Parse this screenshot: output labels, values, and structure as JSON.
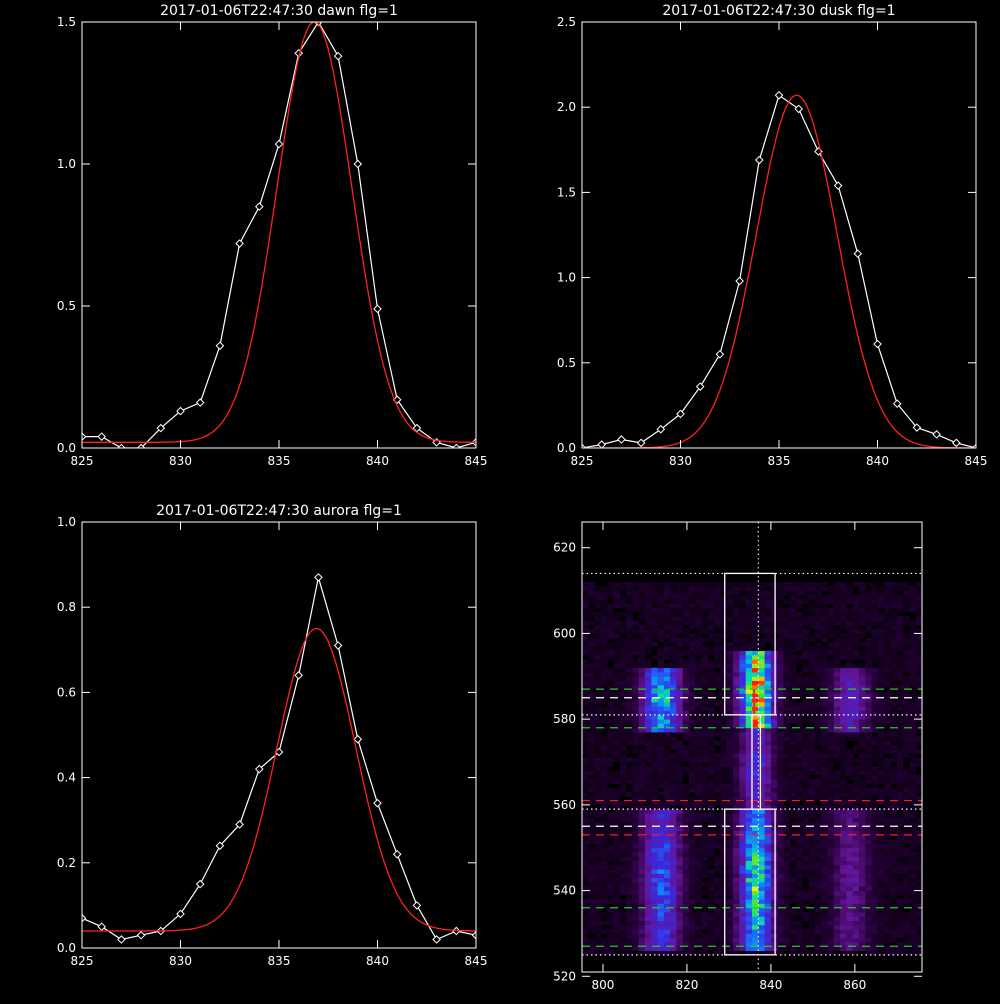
{
  "chart_data": [
    {
      "type": "line",
      "title": "2017-01-06T22:47:30 dawn flg=1",
      "xlim": [
        825,
        845
      ],
      "ylim": [
        0,
        1.5
      ],
      "xticks": [
        "825",
        "830",
        "835",
        "840",
        "845"
      ],
      "yticks": [
        "0.0",
        "0.5",
        "1.0",
        "1.5"
      ],
      "series": [
        {
          "color": "#ffffff",
          "marker": "diamond",
          "x": [
            825,
            826,
            827,
            828,
            829,
            830,
            831,
            832,
            833,
            834,
            835,
            836,
            837,
            838,
            839,
            840,
            841,
            842,
            843,
            844,
            845
          ],
          "y": [
            0.04,
            0.04,
            0.0,
            0.0,
            0.07,
            0.13,
            0.16,
            0.36,
            0.72,
            0.85,
            1.07,
            1.39,
            1.5,
            1.38,
            1.0,
            0.49,
            0.17,
            0.07,
            0.02,
            0.0,
            0.02
          ]
        },
        {
          "color": "#ff2020",
          "gaussian": {
            "amp": 1.48,
            "center": 836.8,
            "sigma": 1.9,
            "offset": 0.02
          }
        }
      ]
    },
    {
      "type": "line",
      "title": "2017-01-06T22:47:30 dusk flg=1",
      "xlim": [
        825,
        845
      ],
      "ylim": [
        0,
        2.5
      ],
      "xticks": [
        "825",
        "830",
        "835",
        "840",
        "845"
      ],
      "yticks": [
        "0.0",
        "0.5",
        "1.0",
        "1.5",
        "2.0",
        "2.5"
      ],
      "series": [
        {
          "color": "#ffffff",
          "marker": "diamond",
          "x": [
            825,
            826,
            827,
            828,
            829,
            830,
            831,
            832,
            833,
            834,
            835,
            836,
            837,
            838,
            839,
            840,
            841,
            842,
            843,
            844,
            845
          ],
          "y": [
            0.0,
            0.02,
            0.05,
            0.03,
            0.11,
            0.2,
            0.36,
            0.55,
            0.98,
            1.69,
            2.07,
            1.99,
            1.74,
            1.54,
            1.14,
            0.61,
            0.26,
            0.12,
            0.08,
            0.03,
            0.0
          ]
        },
        {
          "color": "#ff2020",
          "gaussian": {
            "amp": 2.07,
            "center": 835.9,
            "sigma": 2.05,
            "offset": 0.0
          }
        }
      ]
    },
    {
      "type": "line",
      "title": "2017-01-06T22:47:30 aurora flg=1",
      "xlim": [
        825,
        845
      ],
      "ylim": [
        0,
        1.0
      ],
      "xticks": [
        "825",
        "830",
        "835",
        "840",
        "845"
      ],
      "yticks": [
        "0.0",
        "0.2",
        "0.4",
        "0.6",
        "0.8",
        "1.0"
      ],
      "series": [
        {
          "color": "#ffffff",
          "marker": "diamond",
          "x": [
            825,
            826,
            827,
            828,
            829,
            830,
            831,
            832,
            833,
            834,
            835,
            836,
            837,
            838,
            839,
            840,
            841,
            842,
            843,
            844,
            845
          ],
          "y": [
            0.07,
            0.05,
            0.02,
            0.03,
            0.04,
            0.08,
            0.15,
            0.24,
            0.29,
            0.42,
            0.46,
            0.64,
            0.87,
            0.71,
            0.49,
            0.34,
            0.22,
            0.1,
            0.02,
            0.04,
            0.03
          ]
        },
        {
          "color": "#ff2020",
          "gaussian": {
            "amp": 0.71,
            "center": 836.9,
            "sigma": 2.0,
            "offset": 0.04
          }
        }
      ]
    },
    {
      "type": "heatmap",
      "xlim": [
        795,
        876
      ],
      "ylim": [
        521,
        626
      ],
      "xticks": [
        "800",
        "820",
        "840",
        "860"
      ],
      "yticks": [
        "520",
        "540",
        "560",
        "580",
        "600",
        "620"
      ],
      "columns": [
        {
          "center": 814,
          "width": 3.0,
          "segments": [
            {
              "y": [
                527,
                557
              ],
              "peak": 0.45
            },
            {
              "y": [
                578,
                590
              ],
              "peak": 0.65
            }
          ]
        },
        {
          "center": 836.5,
          "width": 2.6,
          "segments": [
            {
              "y": [
                527,
                557
              ],
              "peak": 0.72
            },
            {
              "y": [
                560,
                578
              ],
              "peak": 0.35
            },
            {
              "y": [
                579,
                594
              ],
              "peak": 1.0
            }
          ]
        },
        {
          "center": 859,
          "width": 3.0,
          "segments": [
            {
              "y": [
                527,
                557
              ],
              "peak": 0.2
            },
            {
              "y": [
                578,
                590
              ],
              "peak": 0.3
            }
          ]
        }
      ],
      "boxes": [
        {
          "x": [
            829,
            841
          ],
          "y": [
            525,
            559
          ]
        },
        {
          "x": [
            829,
            841
          ],
          "y": [
            581,
            614
          ]
        },
        {
          "x": [
            835.5,
            837.5
          ],
          "y": [
            559,
            581
          ]
        }
      ],
      "hlines": [
        {
          "y": 587,
          "color": "#22cc22",
          "style": "dashed"
        },
        {
          "y": 578,
          "color": "#22cc22",
          "style": "dashed"
        },
        {
          "y": 536,
          "color": "#22cc22",
          "style": "dashed"
        },
        {
          "y": 527,
          "color": "#22cc22",
          "style": "dashed"
        },
        {
          "y": 561,
          "color": "#ee2020",
          "style": "dashed"
        },
        {
          "y": 553,
          "color": "#ee2020",
          "style": "dashed"
        },
        {
          "y": 585,
          "color": "#ffffff",
          "style": "dashed"
        },
        {
          "y": 555,
          "color": "#ffffff",
          "style": "dashed"
        },
        {
          "y": 614,
          "color": "#ffffff",
          "style": "dotted"
        },
        {
          "y": 581,
          "color": "#ffffff",
          "style": "dotted"
        },
        {
          "y": 559,
          "color": "#ffffff",
          "style": "dotted"
        },
        {
          "y": 525,
          "color": "#ffffff",
          "style": "dotted"
        }
      ],
      "vline": {
        "x": 837,
        "color": "#ffffff",
        "style": "dotted"
      },
      "redline": {
        "x": 836,
        "y": [
          581,
          587
        ],
        "color": "#ff2020"
      }
    }
  ]
}
